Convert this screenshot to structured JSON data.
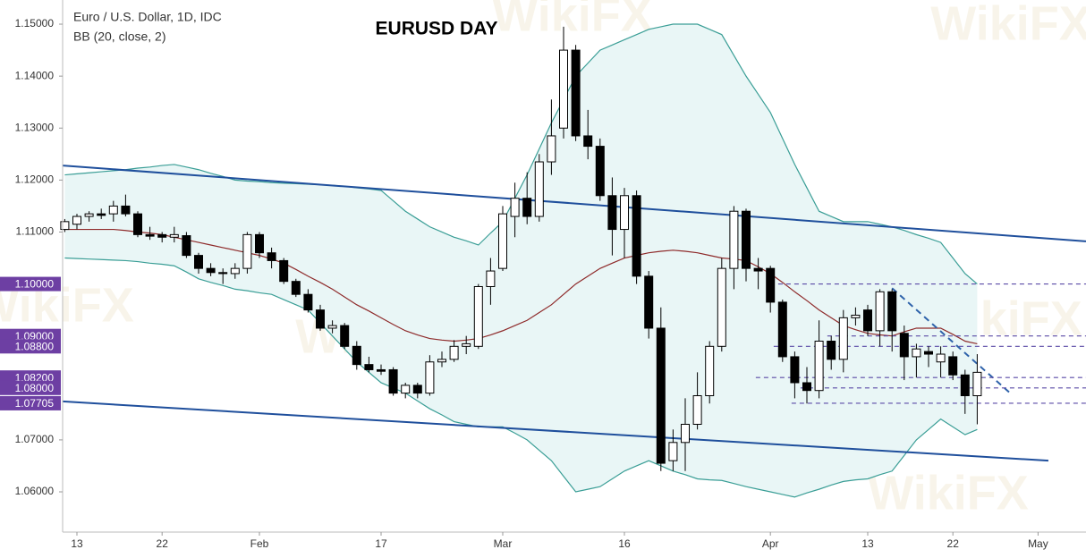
{
  "chart_data": {
    "type": "candlestick",
    "title": "EURUSD DAY",
    "legend_lines": [
      "Euro / U.S. Dollar, 1D, IDC",
      "BB (20, close, 2)"
    ],
    "watermark": "WikiFX",
    "categories": [
      null,
      "13",
      null,
      null,
      null,
      null,
      null,
      null,
      "22",
      null,
      null,
      null,
      null,
      null,
      null,
      null,
      "Feb",
      null,
      null,
      null,
      null,
      null,
      null,
      null,
      null,
      null,
      "17",
      null,
      null,
      null,
      null,
      null,
      null,
      null,
      null,
      null,
      "Mar",
      null,
      null,
      null,
      null,
      null,
      null,
      null,
      null,
      null,
      "16",
      null,
      null,
      null,
      null,
      null,
      null,
      null,
      null,
      null,
      null,
      null,
      "Apr",
      null,
      null,
      null,
      null,
      null,
      null,
      null,
      "13",
      null,
      null,
      null,
      null,
      null,
      null,
      "22",
      null,
      null,
      null,
      null,
      null,
      null,
      "May"
    ],
    "open": [
      1.1105,
      1.1115,
      1.113,
      1.1135,
      1.1135,
      1.115,
      1.1135,
      1.1095,
      1.1095,
      1.109,
      1.1093,
      1.1055,
      1.103,
      1.1022,
      1.102,
      1.103,
      1.1095,
      1.106,
      1.1045,
      1.1005,
      1.098,
      1.095,
      1.0915,
      1.092,
      1.088,
      1.0845,
      1.0835,
      1.0835,
      1.079,
      1.0805,
      1.079,
      1.085,
      1.0855,
      1.088,
      1.088,
      1.0995,
      1.103,
      1.113,
      1.1165,
      1.113,
      1.1235,
      1.13,
      1.145,
      1.1285,
      1.1265,
      1.117,
      1.1105,
      1.117,
      1.1015,
      1.0915,
      1.066,
      1.0695,
      1.073,
      1.0785,
      1.088,
      1.103,
      1.114,
      1.103,
      1.103,
      1.0965,
      1.086,
      1.081,
      1.0795,
      1.089,
      1.0855,
      1.0935,
      1.095,
      1.091,
      1.0985,
      1.0905,
      1.086,
      1.087,
      1.085,
      1.086,
      1.0825,
      1.0785,
      null,
      null,
      null,
      null,
      null
    ],
    "high": [
      1.1125,
      1.1135,
      1.114,
      1.1145,
      1.116,
      1.1172,
      1.114,
      1.111,
      1.11,
      1.111,
      1.11,
      1.106,
      1.104,
      1.103,
      1.104,
      1.11,
      1.11,
      1.107,
      1.105,
      1.101,
      1.099,
      1.096,
      1.093,
      1.0925,
      1.089,
      1.086,
      1.0845,
      1.084,
      1.081,
      1.081,
      1.0863,
      1.087,
      1.0892,
      1.09,
      1.1,
      1.105,
      1.115,
      1.1195,
      1.1215,
      1.125,
      1.1355,
      1.1495,
      1.146,
      1.1335,
      1.128,
      1.1205,
      1.1185,
      1.118,
      1.1025,
      1.0955,
      1.072,
      1.078,
      1.083,
      1.089,
      1.105,
      1.115,
      1.1145,
      1.105,
      1.1035,
      1.097,
      1.087,
      1.084,
      1.093,
      1.09,
      1.095,
      1.0955,
      1.096,
      1.099,
      1.099,
      1.092,
      1.0885,
      1.088,
      1.088,
      1.087,
      1.0835,
      1.0865,
      null,
      null,
      null,
      null,
      null
    ],
    "low": [
      1.11,
      1.1105,
      1.112,
      1.1125,
      1.112,
      1.113,
      1.109,
      1.1085,
      1.108,
      1.108,
      1.105,
      1.102,
      1.1015,
      1.1,
      1.101,
      1.102,
      1.105,
      1.103,
      1.1,
      1.0975,
      1.0945,
      1.091,
      1.0905,
      1.0875,
      1.0835,
      1.083,
      1.0825,
      1.0785,
      1.078,
      1.078,
      1.0785,
      1.084,
      1.085,
      1.0865,
      1.0875,
      1.096,
      1.1025,
      1.109,
      1.1115,
      1.112,
      1.121,
      1.128,
      1.1275,
      1.124,
      1.116,
      1.1055,
      1.105,
      1.1,
      1.0895,
      1.064,
      1.064,
      1.064,
      1.072,
      1.077,
      1.087,
      1.099,
      1.1005,
      1.099,
      1.0945,
      1.085,
      1.078,
      1.077,
      1.078,
      1.0835,
      1.083,
      1.092,
      1.09,
      1.088,
      1.087,
      1.0815,
      1.082,
      1.084,
      1.082,
      1.0815,
      1.075,
      1.073,
      null,
      null,
      null,
      null,
      null
    ],
    "close": [
      1.112,
      1.113,
      1.1135,
      1.1132,
      1.115,
      1.1135,
      1.1095,
      1.1092,
      1.109,
      1.1095,
      1.1055,
      1.103,
      1.1022,
      1.102,
      1.103,
      1.1095,
      1.106,
      1.1045,
      1.1005,
      1.098,
      1.095,
      1.0915,
      1.092,
      1.088,
      1.0845,
      1.0835,
      1.0832,
      1.079,
      1.0805,
      1.079,
      1.085,
      1.0855,
      1.088,
      1.0885,
      1.0995,
      1.1025,
      1.1135,
      1.1165,
      1.113,
      1.1235,
      1.1285,
      1.145,
      1.1285,
      1.1265,
      1.117,
      1.1105,
      1.117,
      1.1015,
      1.0915,
      1.0655,
      1.0695,
      1.073,
      1.0785,
      1.088,
      1.103,
      1.114,
      1.103,
      1.1025,
      1.0965,
      1.086,
      1.081,
      1.0795,
      1.089,
      1.0855,
      1.0935,
      1.094,
      1.091,
      1.0985,
      1.091,
      1.086,
      1.0875,
      1.0865,
      1.0865,
      1.0825,
      1.0785,
      1.083,
      null,
      null,
      null,
      null,
      null
    ],
    "bb_upper": {
      "color": "#3a9e96",
      "values": [
        1.121,
        1.1212,
        1.1214,
        1.1216,
        1.1218,
        1.122,
        1.1223,
        1.1225,
        1.1228,
        1.123,
        1.1225,
        1.122,
        1.1213,
        1.1207,
        1.12,
        1.1198,
        1.1197,
        1.1195,
        1.1194,
        1.1193,
        1.1192,
        1.1191,
        1.119,
        1.1188,
        1.1185,
        1.1183,
        1.118,
        1.116,
        1.114,
        1.1125,
        1.111,
        1.11,
        1.109,
        1.1083,
        1.1075,
        1.1098,
        1.112,
        1.1165,
        1.121,
        1.126,
        1.131,
        1.1355,
        1.14,
        1.1425,
        1.145,
        1.146,
        1.147,
        1.148,
        1.149,
        1.1495,
        1.15,
        1.15,
        1.15,
        1.149,
        1.148,
        1.144,
        1.14,
        1.1365,
        1.133,
        1.128,
        1.123,
        1.1185,
        1.114,
        1.113,
        1.112,
        1.112,
        1.112,
        1.1115,
        1.111,
        1.1103,
        1.1095,
        1.1088,
        1.108,
        1.105,
        1.102,
        1.1,
        null,
        null,
        null,
        null,
        null
      ]
    },
    "bb_basis": {
      "color": "#8e2a2a",
      "values": [
        1.1105,
        1.1105,
        1.1105,
        1.1105,
        1.1105,
        1.1103,
        1.11,
        1.1098,
        1.1095,
        1.109,
        1.1085,
        1.108,
        1.1075,
        1.107,
        1.1065,
        1.106,
        1.1055,
        1.1048,
        1.104,
        1.1028,
        1.1015,
        1.1003,
        1.099,
        1.0975,
        1.096,
        1.0948,
        1.0935,
        1.0922,
        1.091,
        1.0902,
        1.0895,
        1.0892,
        1.089,
        1.0892,
        1.0895,
        1.0902,
        1.091,
        1.092,
        1.093,
        1.0945,
        1.096,
        1.098,
        1.1,
        1.1015,
        1.103,
        1.104,
        1.105,
        1.1055,
        1.106,
        1.1063,
        1.1065,
        1.1063,
        1.106,
        1.1055,
        1.105,
        1.1048,
        1.1045,
        1.1033,
        1.102,
        1.1003,
        1.0985,
        1.0968,
        1.095,
        1.0935,
        1.092,
        1.0912,
        1.0905,
        1.0902,
        1.09,
        1.0908,
        1.0915,
        1.0915,
        1.0915,
        1.0903,
        1.089,
        1.0885,
        null,
        null,
        null,
        null,
        null
      ]
    },
    "bb_lower": {
      "color": "#3a9e96",
      "values": [
        1.105,
        1.1049,
        1.1048,
        1.1047,
        1.1046,
        1.1045,
        1.1043,
        1.104,
        1.1038,
        1.1035,
        1.1023,
        1.101,
        1.1003,
        1.0997,
        1.099,
        1.0987,
        1.0983,
        1.098,
        1.097,
        1.096,
        1.095,
        1.0925,
        1.09,
        1.0875,
        1.085,
        1.083,
        1.081,
        1.08,
        1.079,
        1.0775,
        1.076,
        1.0748,
        1.0735,
        1.073,
        1.0725,
        1.0725,
        1.0725,
        1.0713,
        1.07,
        1.068,
        1.066,
        1.063,
        1.06,
        1.0605,
        1.061,
        1.0625,
        1.064,
        1.065,
        1.066,
        1.065,
        1.064,
        1.0633,
        1.0625,
        1.0623,
        1.0622,
        1.0616,
        1.061,
        1.0605,
        1.06,
        1.0595,
        1.059,
        1.0598,
        1.0605,
        1.0613,
        1.062,
        1.0623,
        1.0625,
        1.0633,
        1.064,
        1.067,
        1.07,
        1.072,
        1.074,
        1.0725,
        1.071,
        1.072,
        null,
        null,
        null,
        null,
        null
      ]
    },
    "trendlines": [
      {
        "x": [
          -0.18,
          83.94
        ],
        "y": [
          1.1228,
          1.1082
        ],
        "color": "#1f4f9c"
      },
      {
        "x": [
          -0.18,
          80.85
        ],
        "y": [
          1.0774,
          1.066
        ],
        "color": "#1f4f9c"
      },
      {
        "x": [
          68.0,
          77.76
        ],
        "y": [
          1.0992,
          1.0789
        ],
        "color": "#2e62aa",
        "dashed": true
      }
    ],
    "levels": [
      {
        "value": 1.1,
        "label": "1.10000",
        "x_start": 58.64
      },
      {
        "value": 1.09,
        "label": "1.09000",
        "x_start": 62.68
      },
      {
        "value": 1.088,
        "label": "1.08800",
        "x_start": 58.27
      },
      {
        "value": 1.082,
        "label": "1.08200",
        "x_start": 56.8
      },
      {
        "value": 1.08,
        "label": "1.08000",
        "x_start": 60.48
      },
      {
        "value": 1.07705,
        "label": "1.07705",
        "x_start": 59.74
      }
    ],
    "level_color": "#5a4aa6",
    "level_label_color": "#6d3fa3",
    "ylim": [
      1.05226,
      1.15465
    ],
    "yticks": [
      {
        "value": 1.15,
        "label": "1.15000"
      },
      {
        "value": 1.14,
        "label": "1.14000"
      },
      {
        "value": 1.13,
        "label": "1.13000"
      },
      {
        "value": 1.12,
        "label": "1.12000"
      },
      {
        "value": 1.11,
        "label": "1.11000"
      },
      {
        "value": 1.07,
        "label": "1.07000"
      },
      {
        "value": 1.06,
        "label": "1.06000"
      }
    ]
  }
}
